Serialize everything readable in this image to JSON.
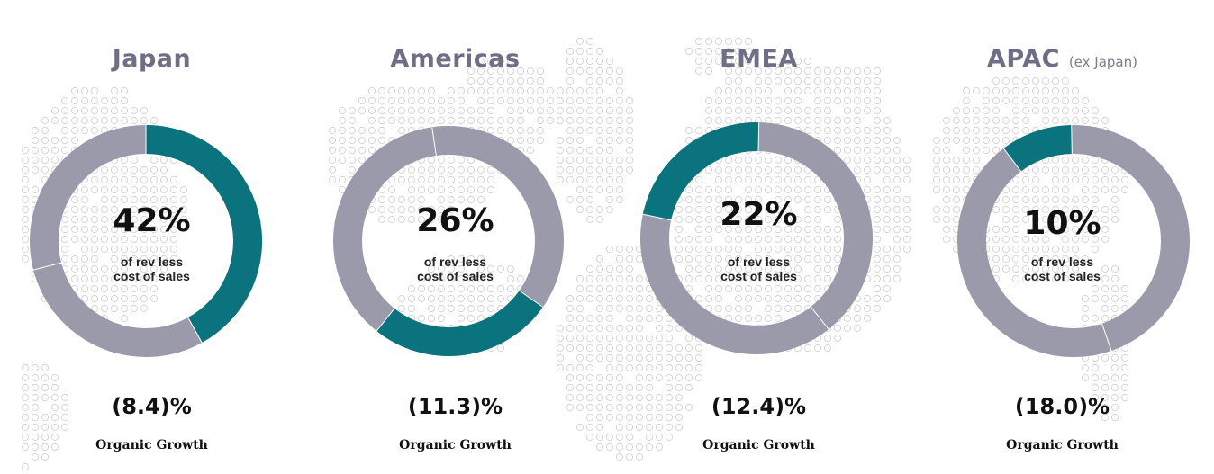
{
  "chart_data": [
    {
      "type": "pie",
      "title": "Japan",
      "subtitle": "",
      "share_pct": 42,
      "share_display": "42%",
      "share_label_line1": "of rev less",
      "share_label_line2": "cost of sales",
      "organic_growth": "(8.4)%",
      "organic_growth_label": "Organic Growth"
    },
    {
      "type": "pie",
      "title": "Americas",
      "subtitle": "",
      "share_pct": 26,
      "share_display": "26%",
      "share_label_line1": "of rev less",
      "share_label_line2": "cost of sales",
      "organic_growth": "(11.3)%",
      "organic_growth_label": "Organic Growth"
    },
    {
      "type": "pie",
      "title": "EMEA",
      "subtitle": "",
      "share_pct": 22,
      "share_display": "22%",
      "share_label_line1": "of rev less",
      "share_label_line2": "cost of sales",
      "organic_growth": "(12.4)%",
      "organic_growth_label": "Organic Growth"
    },
    {
      "type": "pie",
      "title": "APAC",
      "subtitle": "(ex Japan)",
      "share_pct": 10,
      "share_display": "10%",
      "share_label_line1": "of rev less",
      "share_label_line2": "cost of sales",
      "organic_growth": "(18.0)%",
      "organic_growth_label": "Organic Growth"
    }
  ],
  "colors": {
    "highlight": "#0a737d",
    "remainder": "#9a9aab",
    "title": "#6e6f86",
    "map_dots": "#d6d6d6"
  }
}
